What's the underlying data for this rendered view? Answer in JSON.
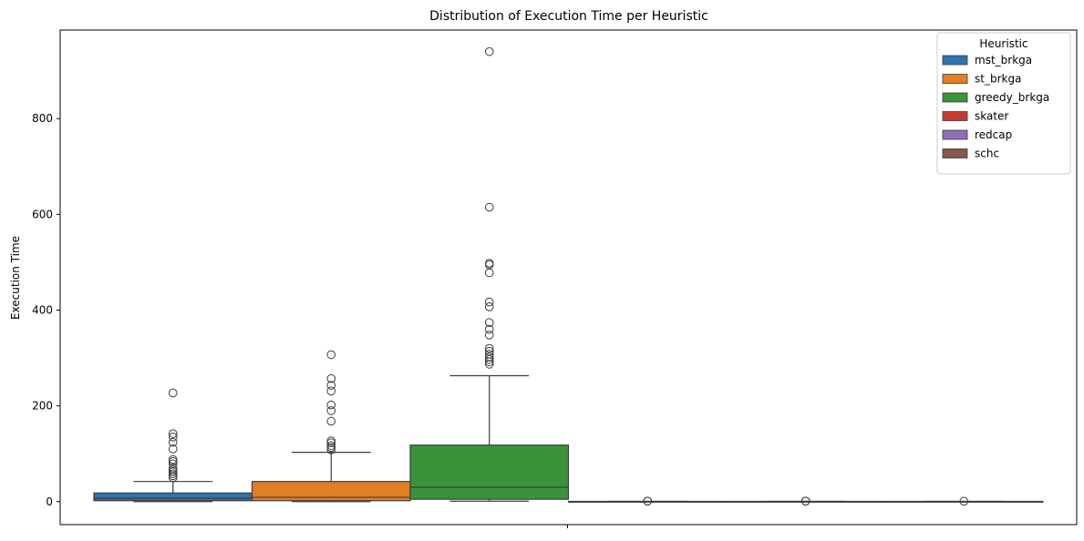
{
  "chart_data": {
    "type": "box",
    "title": "Distribution of Execution Time per Heuristic",
    "xlabel": "",
    "ylabel": "Execution Time",
    "ylim": [
      -48,
      985
    ],
    "yticks": [
      0,
      200,
      400,
      600,
      800
    ],
    "grid": false,
    "legend": {
      "title": "Heuristic",
      "placement": "top-right"
    },
    "series": [
      {
        "name": "mst_brkga",
        "color": "#2f73ad",
        "q1": 2,
        "median": 7,
        "q3": 18,
        "whisker_low": 0,
        "whisker_high": 42,
        "outliers": [
          227,
          142,
          135,
          124,
          110,
          88,
          84,
          79,
          70,
          66,
          62,
          58,
          54,
          50
        ]
      },
      {
        "name": "st_brkga",
        "color": "#e07f23",
        "q1": 2,
        "median": 9,
        "q3": 42,
        "whisker_low": 0,
        "whisker_high": 103,
        "outliers": [
          307,
          257,
          243,
          231,
          202,
          190,
          168,
          127,
          123,
          117,
          113,
          108
        ]
      },
      {
        "name": "greedy_brkga",
        "color": "#3a933a",
        "q1": 5,
        "median": 30,
        "q3": 118,
        "whisker_low": 1,
        "whisker_high": 263,
        "outliers": [
          940,
          615,
          498,
          495,
          478,
          417,
          407,
          374,
          360,
          348,
          320,
          314,
          308,
          302,
          297,
          292,
          287
        ]
      },
      {
        "name": "skater",
        "color": "#c53a32",
        "q1": 0,
        "median": 0,
        "q3": 0.5,
        "whisker_low": 0,
        "whisker_high": 0.5,
        "outliers": [
          1.2,
          0.9
        ]
      },
      {
        "name": "redcap",
        "color": "#8c6fb5",
        "q1": 0,
        "median": 0,
        "q3": 0.5,
        "whisker_low": 0,
        "whisker_high": 0.5,
        "outliers": [
          1.2,
          0.9
        ]
      },
      {
        "name": "schc",
        "color": "#835a4d",
        "q1": 0,
        "median": 0,
        "q3": 0.5,
        "whisker_low": 0,
        "whisker_high": 0.5,
        "outliers": [
          0.8
        ]
      }
    ]
  }
}
